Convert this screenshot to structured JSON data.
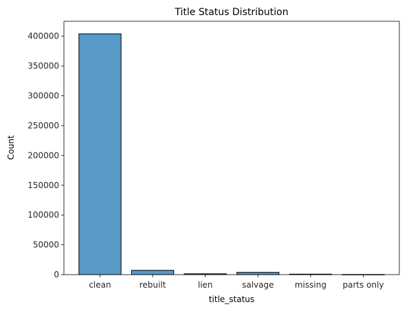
{
  "chart_data": {
    "type": "bar",
    "title": "Title Status Distribution",
    "xlabel": "title_status",
    "ylabel": "Count",
    "categories": [
      "clean",
      "rebuilt",
      "lien",
      "salvage",
      "missing",
      "parts only"
    ],
    "values": [
      404000,
      7200,
      1400,
      3800,
      800,
      200
    ],
    "ylim": [
      0,
      425000
    ],
    "yticks": [
      0,
      50000,
      100000,
      150000,
      200000,
      250000,
      300000,
      350000,
      400000
    ],
    "ytick_labels": [
      "0",
      "50000",
      "100000",
      "150000",
      "200000",
      "250000",
      "300000",
      "350000",
      "400000"
    ],
    "grid": false,
    "bar_color": "#5799c7",
    "edge_color": "#000000"
  }
}
